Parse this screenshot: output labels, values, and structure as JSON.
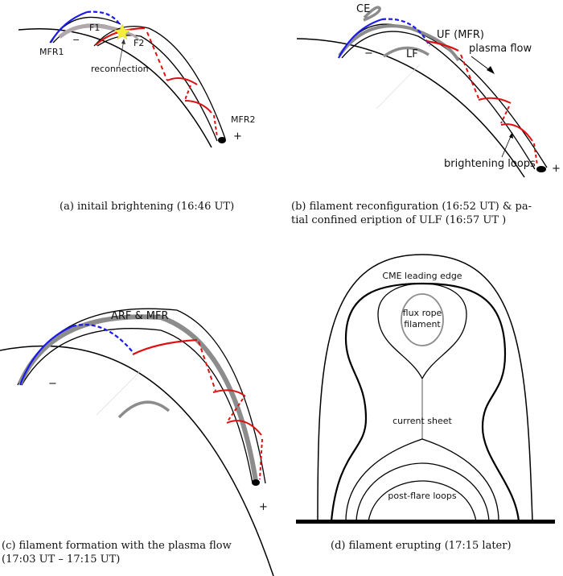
{
  "colors": {
    "blue": "#1a1aee",
    "red": "#dd1111",
    "gray": "#8c8c8c",
    "star": "#f3ee3a"
  },
  "panel_a": {
    "labels": {
      "mfr1": "MFR1",
      "f1": "F1",
      "f2": "F2",
      "minus": "−",
      "reconnection": "reconnection",
      "mfr2": "MFR2",
      "plus": "+"
    },
    "caption": "(a) initail brightening (16:46 UT)"
  },
  "panel_b": {
    "labels": {
      "ce": "CE",
      "uf": "UF (MFR)",
      "lf": "LF",
      "minus": "−",
      "plasma_flow": "plasma flow",
      "brightening_loops": "brightening loops",
      "plus": "+"
    },
    "caption_line1": "(b) filament reconfiguration (16:52 UT) & pa-",
    "caption_line2": "tial confined eription of ULF (16:57 UT   )"
  },
  "panel_c": {
    "labels": {
      "arf_mfr": "ARF & MFR",
      "minus": "−",
      "plus": "+"
    },
    "caption_line1": "(c) filament formation with the plasma flow",
    "caption_line2": "(17:03 UT – 17:15 UT)"
  },
  "panel_d": {
    "labels": {
      "cme": "CME leading edge",
      "flux_rope_1": "flux rope",
      "flux_rope_2": "filament",
      "current_sheet": "current sheet",
      "post_flare": "post-flare loops"
    },
    "caption": "(d) filament erupting (17:15 later)"
  }
}
